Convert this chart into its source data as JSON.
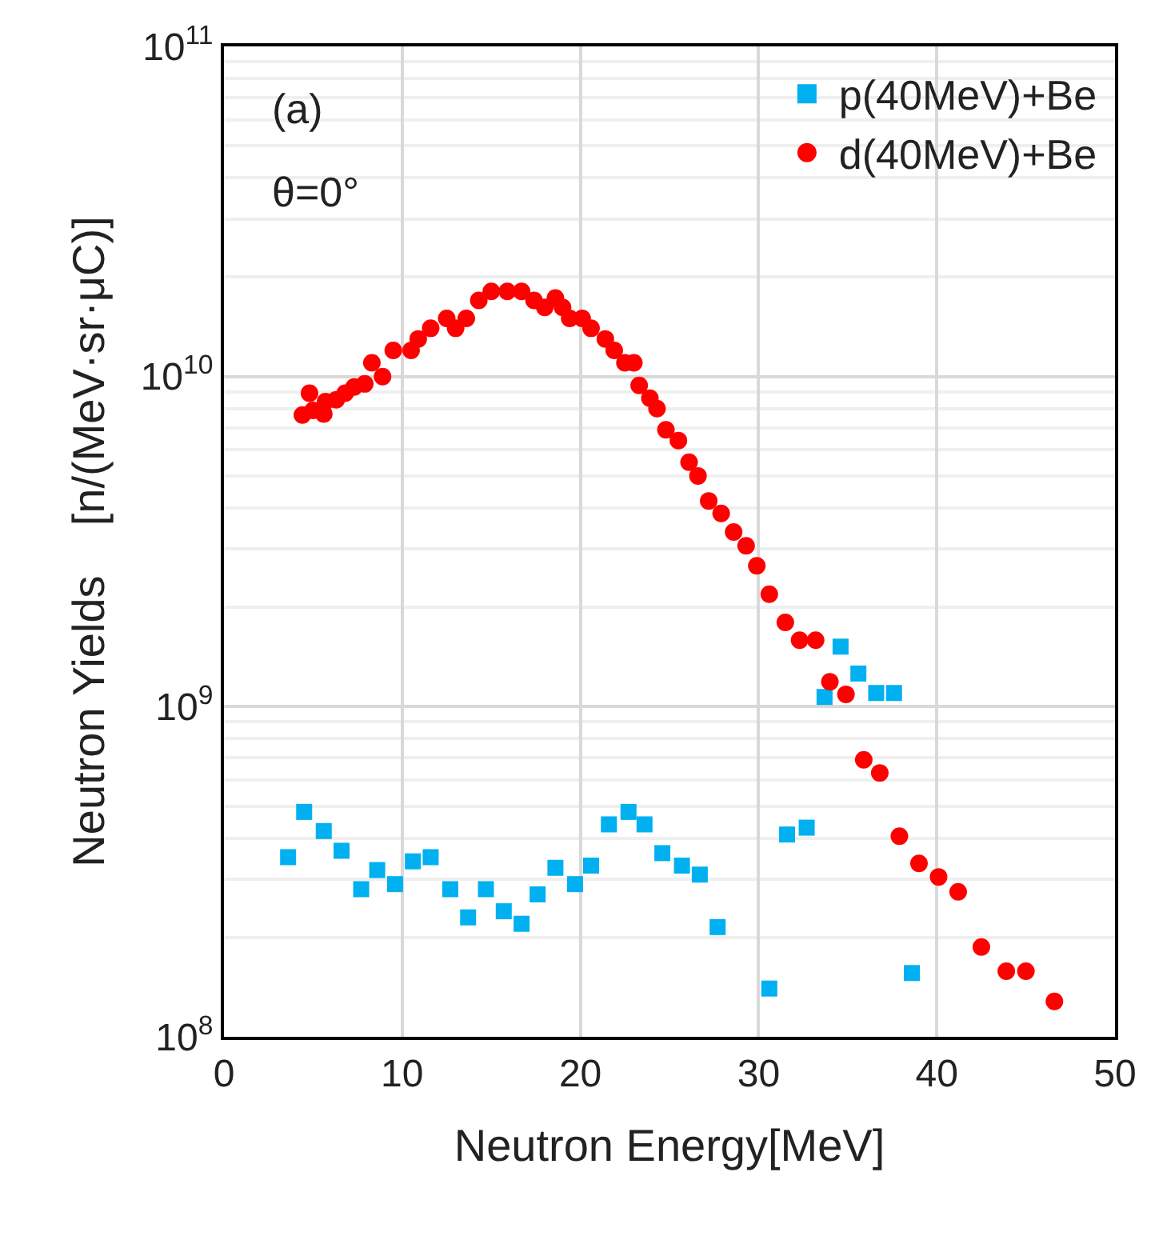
{
  "chart_data": {
    "type": "scatter",
    "xlabel": "Neutron Energy[MeV]",
    "ylabel": "Neutron Yields    [n/(MeV·sr·μC)]",
    "annotations": [
      "(a)",
      "θ=0°"
    ],
    "log": "y",
    "grid": true,
    "legend": "top right",
    "xlim": [
      0,
      50
    ],
    "xticks": [
      0,
      10,
      20,
      30,
      40,
      50
    ],
    "ylim": [
      100000000.0,
      100000000000.0
    ],
    "yticks": [
      {
        "value": 100000000.0,
        "label": "10$^{8}$"
      },
      {
        "value": 1000000000.0,
        "label": "10$^{9}$"
      },
      {
        "value": 10000000000.0,
        "label": "10$^{10}$"
      },
      {
        "value": 100000000000.0,
        "label": "10$^{11}$"
      }
    ],
    "series": [
      {
        "name": "p(40MeV)+Be",
        "color": "#00b0f0",
        "marker": "square",
        "x": [
          3.6,
          4.5,
          5.6,
          6.6,
          7.7,
          8.6,
          9.6,
          10.6,
          11.6,
          12.7,
          13.7,
          14.7,
          15.7,
          16.7,
          17.6,
          18.6,
          19.7,
          20.6,
          21.6,
          22.7,
          23.6,
          24.6,
          25.7,
          26.7,
          27.7,
          30.6,
          31.6,
          32.7,
          33.7,
          34.6,
          35.6,
          36.6,
          37.6,
          38.6
        ],
        "values": [
          350000000.0,
          480000000.0,
          420000000.0,
          366000000.0,
          280000000.0,
          320000000.0,
          290000000.0,
          340000000.0,
          350000000.0,
          280000000.0,
          230000000.0,
          280000000.0,
          240000000.0,
          220000000.0,
          270000000.0,
          325000000.0,
          290000000.0,
          330000000.0,
          440000000.0,
          480000000.0,
          440000000.0,
          360000000.0,
          330000000.0,
          310000000.0,
          215000000.0,
          140000000.0,
          410000000.0,
          430000000.0,
          1070000000.0,
          1520000000.0,
          1260000000.0,
          1100000000.0,
          1100000000.0,
          156000000.0
        ]
      },
      {
        "name": "d(40MeV)+Be",
        "color": "#ff0000",
        "marker": "circle",
        "x": [
          4.4,
          4.8,
          5.0,
          5.6,
          5.7,
          6.3,
          6.8,
          7.3,
          7.9,
          8.3,
          8.9,
          9.5,
          10.5,
          10.9,
          11.6,
          12.5,
          13.0,
          13.6,
          14.3,
          15.0,
          15.9,
          16.7,
          17.4,
          18.0,
          18.6,
          19.0,
          19.4,
          20.1,
          20.6,
          21.4,
          21.9,
          22.5,
          23.0,
          23.3,
          23.9,
          24.3,
          24.8,
          25.5,
          26.1,
          26.6,
          27.2,
          27.9,
          28.6,
          29.3,
          29.9,
          30.6,
          31.5,
          32.3,
          33.2,
          34.0,
          34.9,
          35.9,
          36.8,
          37.9,
          39.0,
          40.1,
          41.2,
          42.5,
          43.9,
          45.0,
          46.6
        ],
        "values": [
          7650000000.0,
          8900000000.0,
          7900000000.0,
          7700000000.0,
          8400000000.0,
          8500000000.0,
          8900000000.0,
          9300000000.0,
          9500000000.0,
          11000000000.0,
          10000000000.0,
          12000000000.0,
          12000000000.0,
          13000000000.0,
          14000000000.0,
          15000000000.0,
          14000000000.0,
          15000000000.0,
          17000000000.0,
          18100000000.0,
          18100000000.0,
          18100000000.0,
          17000000000.0,
          16200000000.0,
          17300000000.0,
          16200000000.0,
          15000000000.0,
          15000000000.0,
          14000000000.0,
          13000000000.0,
          12000000000.0,
          11000000000.0,
          11000000000.0,
          9400000000.0,
          8600000000.0,
          8000000000.0,
          6900000000.0,
          6400000000.0,
          5500000000.0,
          5000000000.0,
          4200000000.0,
          3850000000.0,
          3380000000.0,
          3070000000.0,
          2670000000.0,
          2190000000.0,
          1800000000.0,
          1590000000.0,
          1590000000.0,
          1190000000.0,
          1090000000.0,
          690000000.0,
          630000000.0,
          405000000.0,
          335000000.0,
          305000000.0,
          275000000.0,
          187000000.0,
          158000000.0,
          158000000.0,
          128000000.0
        ]
      }
    ]
  }
}
